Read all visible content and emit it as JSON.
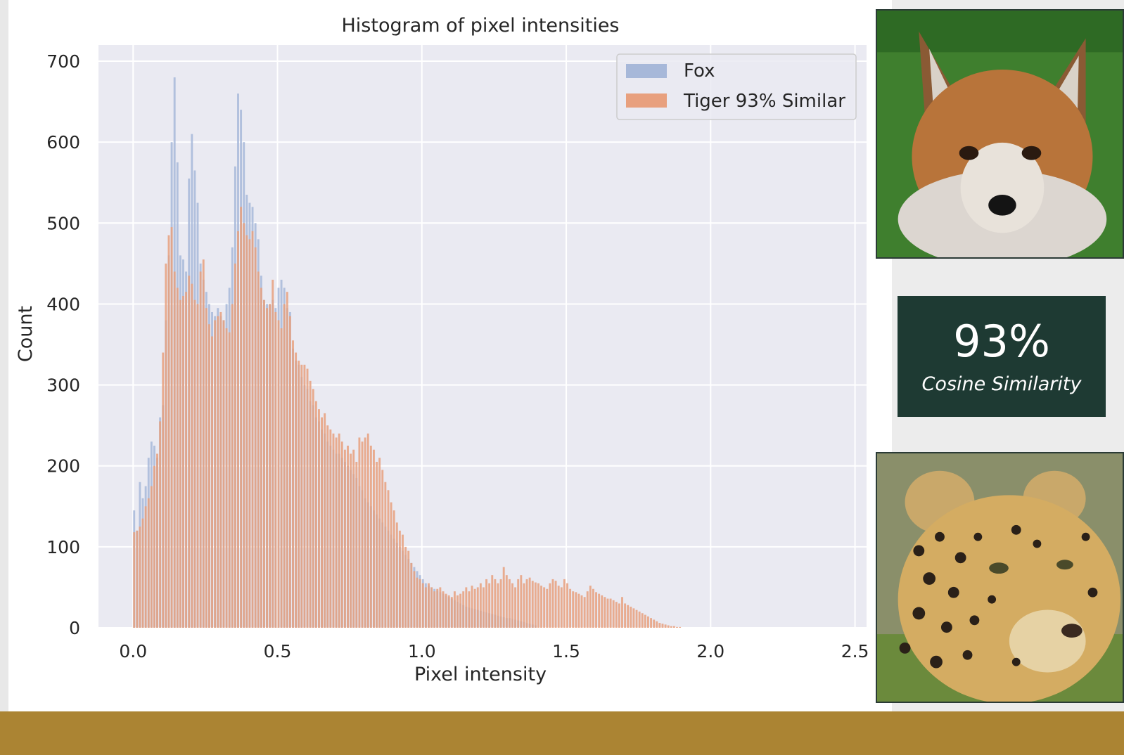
{
  "chart_data": {
    "type": "histogram",
    "title": "Histogram of pixel intensities",
    "xlabel": "Pixel intensity",
    "ylabel": "Count",
    "xlim": [
      -0.12,
      2.54
    ],
    "ylim": [
      0,
      720
    ],
    "x_ticks": [
      0.0,
      0.5,
      1.0,
      1.5,
      2.0,
      2.5
    ],
    "x_tick_labels": [
      "0.0",
      "0.5",
      "1.0",
      "1.5",
      "2.0",
      "2.5"
    ],
    "y_ticks": [
      0,
      100,
      200,
      300,
      400,
      500,
      600,
      700
    ],
    "y_tick_labels": [
      "0",
      "100",
      "200",
      "300",
      "400",
      "500",
      "600",
      "700"
    ],
    "grid": true,
    "legend_position": "top-right",
    "bin_start": 0.0,
    "bin_width": 0.01,
    "series": [
      {
        "name": "Fox",
        "color": "#a7b8d9",
        "values": [
          145,
          120,
          180,
          160,
          175,
          210,
          230,
          225,
          210,
          260,
          275,
          380,
          460,
          600,
          680,
          575,
          460,
          455,
          440,
          555,
          610,
          565,
          525,
          450,
          430,
          415,
          400,
          390,
          385,
          395,
          385,
          380,
          400,
          420,
          470,
          570,
          660,
          640,
          600,
          535,
          525,
          520,
          500,
          480,
          435,
          405,
          400,
          400,
          405,
          395,
          420,
          430,
          420,
          395,
          390,
          345,
          330,
          325,
          310,
          300,
          295,
          280,
          275,
          260,
          255,
          245,
          240,
          230,
          225,
          220,
          215,
          215,
          210,
          205,
          200,
          195,
          190,
          185,
          175,
          170,
          160,
          155,
          150,
          145,
          140,
          135,
          130,
          125,
          120,
          115,
          110,
          105,
          100,
          95,
          90,
          85,
          80,
          75,
          70,
          65,
          60,
          55,
          52,
          50,
          48,
          46,
          44,
          42,
          40,
          38,
          36,
          34,
          32,
          30,
          28,
          26,
          25,
          24,
          23,
          22,
          21,
          20,
          19,
          18,
          17,
          16,
          15,
          14,
          13,
          12,
          12,
          11,
          10,
          9,
          8,
          7,
          6,
          5,
          4,
          3
        ]
      },
      {
        "name": "Tiger 93% Similar",
        "color": "#e8a07e",
        "values": [
          118,
          120,
          125,
          135,
          150,
          160,
          175,
          200,
          215,
          255,
          340,
          450,
          485,
          495,
          440,
          420,
          405,
          410,
          415,
          435,
          425,
          405,
          400,
          440,
          455,
          395,
          375,
          360,
          380,
          385,
          390,
          380,
          370,
          365,
          400,
          450,
          490,
          520,
          500,
          485,
          480,
          490,
          470,
          440,
          420,
          405,
          395,
          400,
          430,
          390,
          380,
          370,
          400,
          415,
          385,
          355,
          340,
          330,
          325,
          325,
          320,
          305,
          295,
          280,
          270,
          260,
          265,
          250,
          245,
          240,
          235,
          240,
          230,
          220,
          225,
          215,
          220,
          205,
          235,
          230,
          235,
          240,
          225,
          220,
          205,
          210,
          195,
          180,
          170,
          155,
          145,
          130,
          120,
          115,
          100,
          95,
          80,
          70,
          62,
          60,
          55,
          50,
          55,
          50,
          45,
          48,
          50,
          45,
          42,
          40,
          38,
          45,
          40,
          42,
          45,
          50,
          45,
          52,
          48,
          50,
          55,
          50,
          60,
          55,
          65,
          60,
          55,
          60,
          75,
          65,
          60,
          55,
          50,
          60,
          65,
          55,
          60,
          62,
          58,
          56,
          55,
          52,
          50,
          48,
          55,
          60,
          58,
          52,
          50,
          60,
          55,
          48,
          45,
          44,
          42,
          40,
          38,
          45,
          52,
          48,
          44,
          42,
          40,
          38,
          36,
          36,
          34,
          32,
          30,
          38,
          30,
          28,
          26,
          24,
          22,
          20,
          18,
          16,
          14,
          12,
          10,
          8,
          6,
          5,
          4,
          3,
          2,
          2,
          1,
          1,
          0,
          0,
          0,
          0
        ]
      }
    ]
  },
  "side_panel": {
    "similarity_value": "93%",
    "similarity_caption": "Cosine Similarity",
    "fox_image_icon": "fox-photo",
    "leopard_image_icon": "leopard-photo",
    "card_color": "#1e3a33",
    "footer_color": "#ab8433"
  }
}
